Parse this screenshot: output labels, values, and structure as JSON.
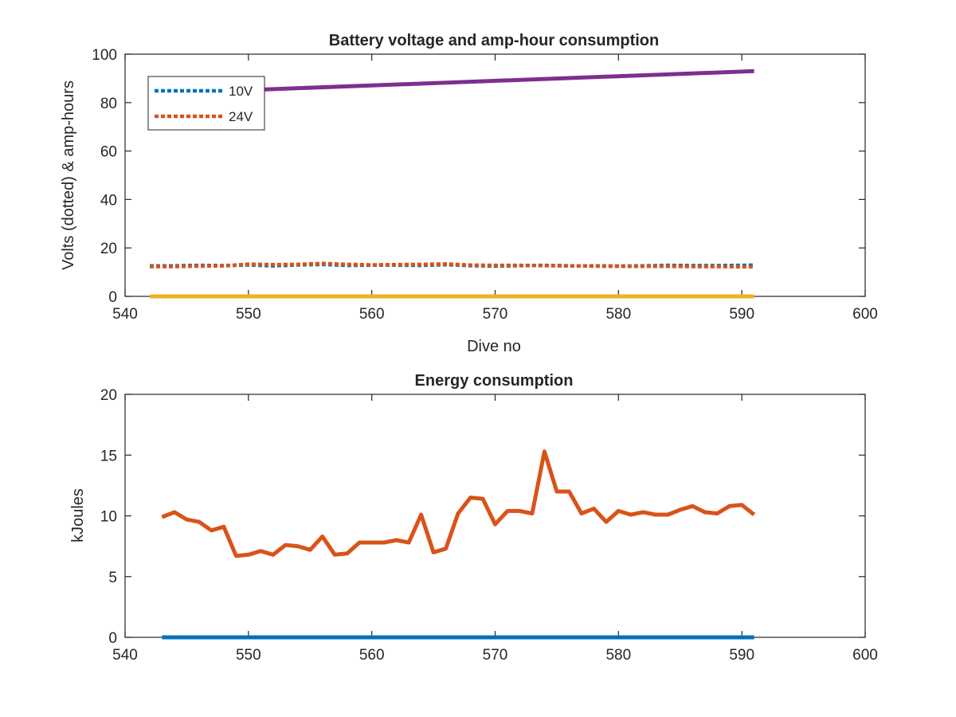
{
  "chart_data": [
    {
      "type": "line",
      "title": "Battery voltage and amp-hour consumption",
      "xlabel": "Dive no",
      "ylabel": "Volts (dotted) & amp-hours",
      "xlim": [
        540,
        600
      ],
      "ylim": [
        0,
        100
      ],
      "xticks": [
        "540",
        "550",
        "560",
        "570",
        "580",
        "590",
        "600"
      ],
      "yticks": [
        "0",
        "20",
        "40",
        "60",
        "80",
        "100"
      ],
      "grid": false,
      "legend_position": "top-left",
      "series": [
        {
          "name": "10V",
          "style": "dotted",
          "color": "#0072BD",
          "in_legend": true,
          "x": [
            542,
            544,
            546,
            548,
            550,
            552,
            554,
            556,
            558,
            560,
            562,
            564,
            566,
            568,
            570,
            572,
            574,
            576,
            578,
            580,
            582,
            584,
            586,
            588,
            590,
            591
          ],
          "y": [
            12.6,
            12.6,
            12.8,
            12.7,
            13.0,
            12.6,
            13.0,
            13.2,
            12.8,
            12.9,
            12.9,
            12.8,
            13.1,
            12.7,
            12.5,
            12.7,
            12.8,
            12.6,
            12.6,
            12.5,
            12.6,
            12.8,
            12.7,
            12.7,
            12.8,
            12.9
          ]
        },
        {
          "name": "24V",
          "style": "dotted",
          "color": "#D95319",
          "in_legend": true,
          "x": [
            542,
            544,
            546,
            548,
            550,
            552,
            554,
            556,
            558,
            560,
            562,
            564,
            566,
            568,
            570,
            572,
            574,
            576,
            578,
            580,
            582,
            584,
            586,
            588,
            590,
            591
          ],
          "y": [
            12.3,
            12.3,
            12.5,
            12.6,
            13.3,
            13.1,
            13.2,
            13.6,
            13.2,
            13.0,
            13.1,
            13.2,
            13.4,
            12.9,
            12.8,
            12.8,
            12.7,
            12.6,
            12.5,
            12.4,
            12.4,
            12.4,
            12.3,
            12.3,
            12.2,
            12.2
          ]
        },
        {
          "name": "",
          "style": "solid",
          "color": "#7E2F8E",
          "in_legend": false,
          "x": [
            549,
            591
          ],
          "y": [
            85,
            93
          ]
        },
        {
          "name": "",
          "style": "solid",
          "color": "#EDB120",
          "in_legend": false,
          "x": [
            542,
            591
          ],
          "y": [
            0,
            0
          ]
        }
      ]
    },
    {
      "type": "line",
      "title": "Energy consumption",
      "xlabel": "",
      "ylabel": "kJoules",
      "xlim": [
        540,
        600
      ],
      "ylim": [
        0,
        20
      ],
      "xticks": [
        "540",
        "550",
        "560",
        "570",
        "580",
        "590",
        "600"
      ],
      "yticks": [
        "0",
        "5",
        "10",
        "15",
        "20"
      ],
      "grid": false,
      "series": [
        {
          "name": "",
          "style": "solid",
          "color": "#D95319",
          "x": [
            543,
            544,
            545,
            546,
            547,
            548,
            549,
            550,
            551,
            552,
            553,
            554,
            555,
            556,
            557,
            558,
            559,
            560,
            561,
            562,
            563,
            564,
            565,
            566,
            567,
            568,
            569,
            570,
            571,
            572,
            573,
            574,
            575,
            576,
            577,
            578,
            579,
            580,
            581,
            582,
            583,
            584,
            585,
            586,
            587,
            588,
            589,
            590,
            591
          ],
          "y": [
            9.9,
            10.3,
            9.7,
            9.5,
            8.8,
            9.1,
            6.7,
            6.8,
            7.1,
            6.8,
            7.6,
            7.5,
            7.2,
            8.3,
            6.8,
            6.9,
            7.8,
            7.8,
            7.8,
            8.0,
            7.8,
            10.1,
            7.0,
            7.3,
            10.2,
            11.5,
            11.4,
            9.3,
            10.4,
            10.4,
            10.2,
            15.3,
            12.0,
            12.0,
            10.2,
            10.6,
            9.5,
            10.4,
            10.1,
            10.3,
            10.1,
            10.1,
            10.5,
            10.8,
            10.3,
            10.2,
            10.8,
            10.9,
            10.1
          ]
        },
        {
          "name": "",
          "style": "solid",
          "color": "#0072BD",
          "x": [
            543,
            591
          ],
          "y": [
            0,
            0
          ]
        }
      ]
    }
  ]
}
